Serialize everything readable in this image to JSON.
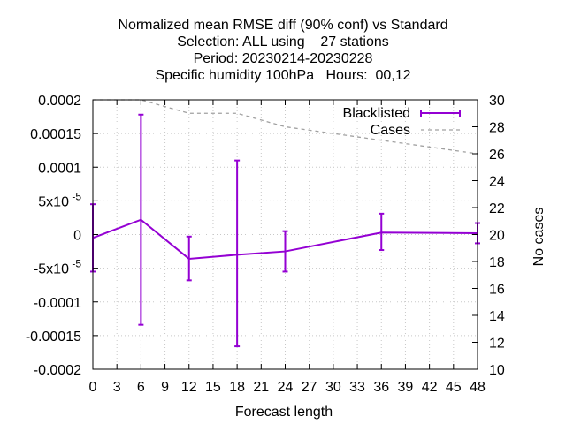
{
  "chart_data": {
    "type": "line",
    "title_lines": [
      "Normalized mean RMSE diff (90% conf) vs Standard",
      "Selection: ALL using    27 stations",
      "Period: 20230214-20230228",
      "Specific humidity 100hPa   Hours:  00,12"
    ],
    "xlabel": "Forecast length",
    "ylabel_right": "No cases",
    "xlim": [
      0,
      48
    ],
    "ylim": [
      -0.0002,
      0.0002
    ],
    "y2lim": [
      10,
      30
    ],
    "x_ticks": [
      0,
      3,
      6,
      9,
      12,
      15,
      18,
      21,
      24,
      27,
      30,
      33,
      36,
      39,
      42,
      45,
      48
    ],
    "y_ticks": [
      {
        "v": 0.0002,
        "label": "0.0002"
      },
      {
        "v": 0.00015,
        "label": "0.00015"
      },
      {
        "v": 0.0001,
        "label": "0.0001"
      },
      {
        "v": 5e-05,
        "label": "5x10",
        "exp": "-5"
      },
      {
        "v": 0,
        "label": "0"
      },
      {
        "v": -5e-05,
        "label": "-5x10",
        "exp": "-5"
      },
      {
        "v": -0.0001,
        "label": "-0.0001"
      },
      {
        "v": -0.00015,
        "label": "-0.00015"
      },
      {
        "v": -0.0002,
        "label": "-0.0002"
      }
    ],
    "y2_ticks": [
      10,
      12,
      14,
      16,
      18,
      20,
      22,
      24,
      26,
      28,
      30
    ],
    "legend_position": "top-right",
    "series": [
      {
        "name": "Blacklisted",
        "color": "#9400d3",
        "style": "errorbars-line",
        "points": [
          {
            "x": 0,
            "y": -5e-06,
            "lo": -5.5e-05,
            "hi": 4.5e-05
          },
          {
            "x": 6,
            "y": 2.2e-05,
            "lo": -0.000134,
            "hi": 0.000178
          },
          {
            "x": 12,
            "y": -3.6e-05,
            "lo": -6.8e-05,
            "hi": -3e-06
          },
          {
            "x": 18,
            "y": -3e-05,
            "lo": -0.000166,
            "hi": 0.00011
          },
          {
            "x": 24,
            "y": -2.5e-05,
            "lo": -5.5e-05,
            "hi": 5e-06
          },
          {
            "x": 36,
            "y": 3e-06,
            "lo": -2.3e-05,
            "hi": 3.1e-05
          },
          {
            "x": 48,
            "y": 2e-06,
            "lo": -1.3e-05,
            "hi": 1.7e-05
          }
        ]
      },
      {
        "name": "Cases",
        "color": "#a0a0a0",
        "style": "dashed",
        "axis": "right",
        "x": [
          0,
          6,
          12,
          18,
          24,
          36,
          42,
          48
        ],
        "y": [
          30,
          30,
          29,
          29,
          28,
          27,
          26.5,
          26
        ]
      }
    ]
  }
}
